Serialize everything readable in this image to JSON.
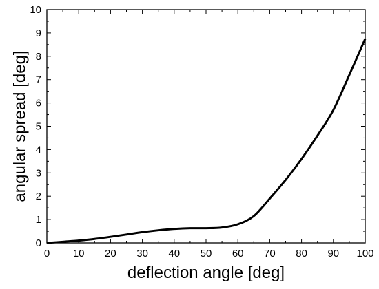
{
  "chart_data": {
    "type": "line",
    "xlabel": "deflection angle [deg]",
    "ylabel": "angular spread [deg]",
    "xlim": [
      0,
      100
    ],
    "ylim": [
      0,
      10
    ],
    "x_ticks": [
      "0",
      "10",
      "20",
      "30",
      "40",
      "50",
      "60",
      "70",
      "80",
      "90",
      "100"
    ],
    "y_ticks": [
      "0",
      "1",
      "2",
      "3",
      "4",
      "5",
      "6",
      "7",
      "8",
      "9",
      "10"
    ],
    "grid": false,
    "series": [
      {
        "color": "#000000",
        "x": [
          0,
          5,
          10,
          15,
          20,
          25,
          30,
          35,
          40,
          45,
          50,
          55,
          60,
          65,
          70,
          75,
          80,
          85,
          90,
          95,
          100
        ],
        "y": [
          0.0,
          0.05,
          0.1,
          0.17,
          0.26,
          0.36,
          0.46,
          0.54,
          0.6,
          0.63,
          0.63,
          0.66,
          0.8,
          1.15,
          1.9,
          2.7,
          3.6,
          4.6,
          5.7,
          7.2,
          8.75
        ]
      }
    ]
  }
}
